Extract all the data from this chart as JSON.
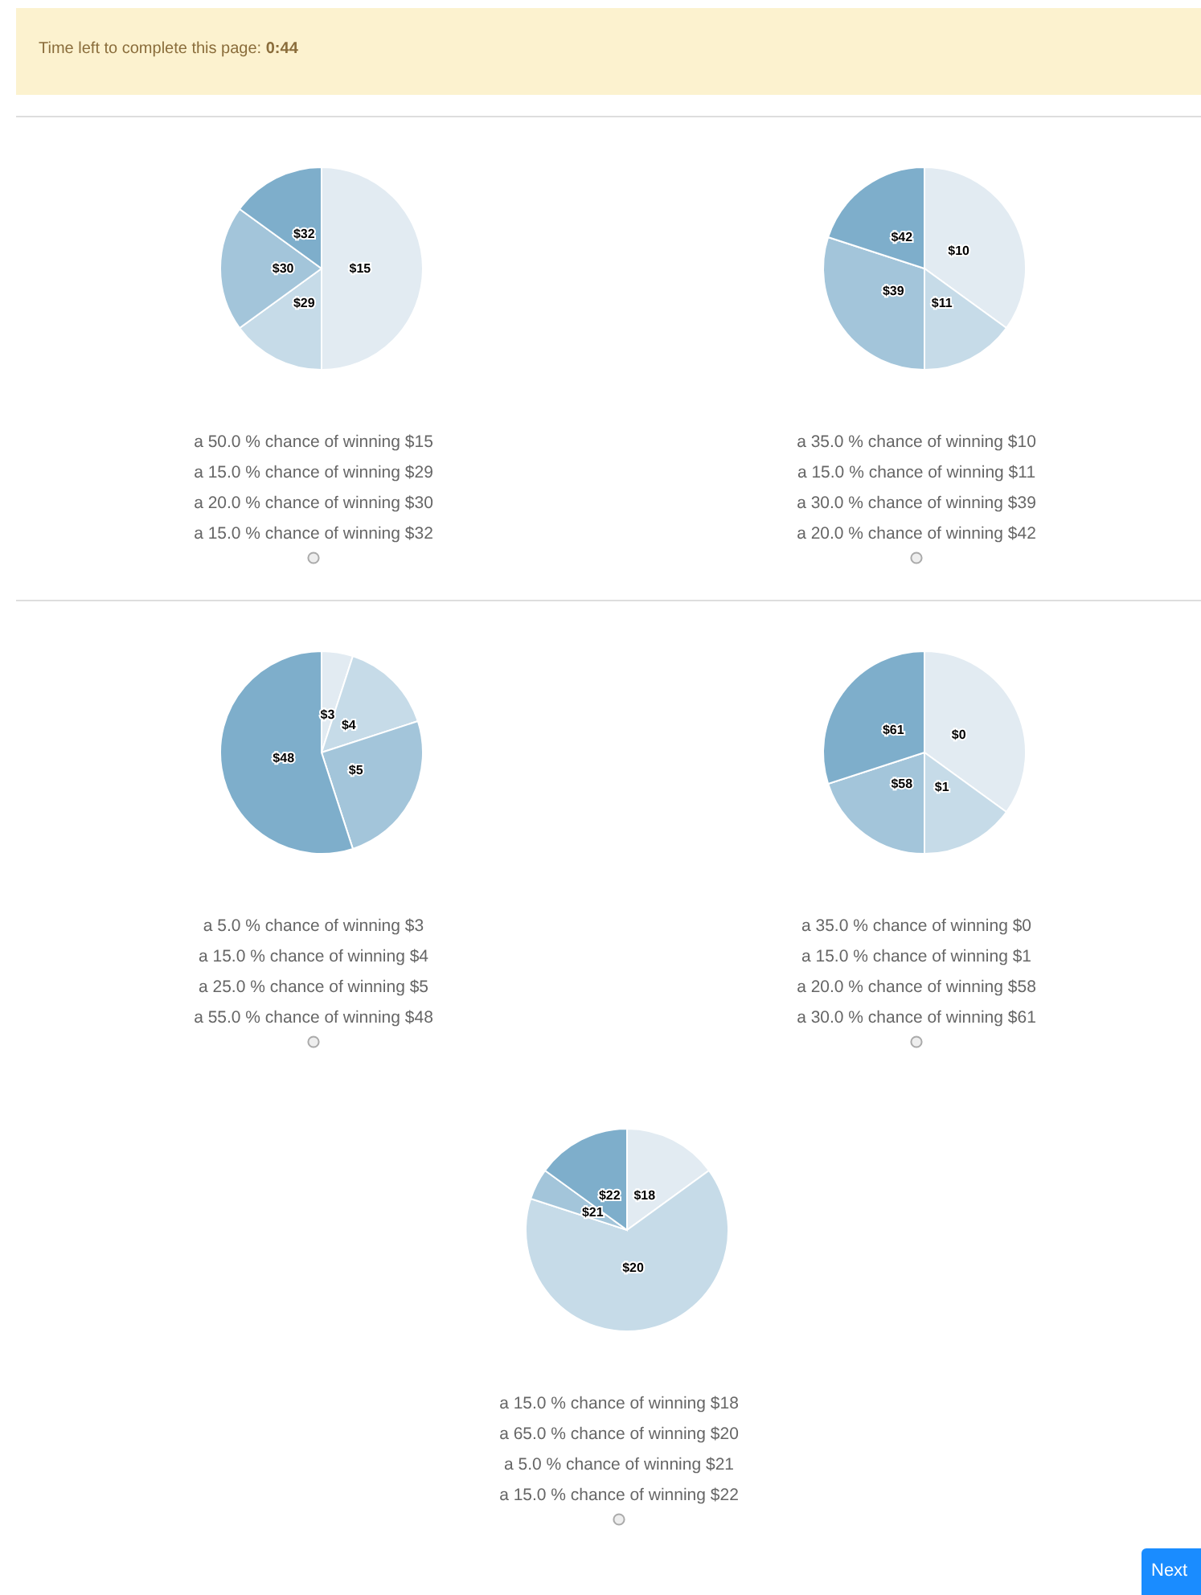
{
  "chart_data": [
    {
      "type": "pie",
      "title": "Time left to complete this page: 0:44",
      "categories": [
        "$15",
        "$29",
        "$30",
        "$32"
      ],
      "values": [
        50,
        15,
        20,
        15
      ],
      "colors": [
        "#e2ebf2",
        "#c6dbe8",
        "#a3c5da",
        "#7eaecb"
      ],
      "annotations": [
        "a 50.0 % chance of winning $15",
        "a 15.0 % chance of winning $29",
        "a 20.0 % chance of winning $30",
        "a 15.0 % chance of winning $32"
      ]
    },
    {
      "type": "pie",
      "categories": [
        "$10",
        "$11",
        "$39",
        "$42"
      ],
      "values": [
        35,
        15,
        30,
        20
      ],
      "colors": [
        "#e2ebf2",
        "#c6dbe8",
        "#a3c5da",
        "#7eaecb"
      ],
      "annotations": [
        "a 35.0 % chance of winning $10",
        "a 15.0 % chance of winning $11",
        "a 30.0 % chance of winning $39",
        "a 20.0 % chance of winning $42"
      ]
    },
    {
      "type": "pie",
      "categories": [
        "$3",
        "$4",
        "$5",
        "$48"
      ],
      "values": [
        5,
        15,
        25,
        55
      ],
      "colors": [
        "#e2ebf2",
        "#c6dbe8",
        "#a3c5da",
        "#7eaecb"
      ],
      "annotations": [
        "a 5.0 % chance of winning $3",
        "a 15.0 % chance of winning $4",
        "a 25.0 % chance of winning $5",
        "a 55.0 % chance of winning $48"
      ]
    },
    {
      "type": "pie",
      "categories": [
        "$0",
        "$1",
        "$58",
        "$61"
      ],
      "values": [
        35,
        15,
        20,
        30
      ],
      "colors": [
        "#e2ebf2",
        "#c6dbe8",
        "#a3c5da",
        "#7eaecb"
      ],
      "annotations": [
        "a 35.0 % chance of winning $0",
        "a 15.0 % chance of winning $1",
        "a 20.0 % chance of winning $58",
        "a 30.0 % chance of winning $61"
      ]
    },
    {
      "type": "pie",
      "categories": [
        "$18",
        "$20",
        "$21",
        "$22"
      ],
      "values": [
        15,
        65,
        5,
        15
      ],
      "colors": [
        "#e2ebf2",
        "#c6dbe8",
        "#a3c5da",
        "#7eaecb"
      ],
      "annotations": [
        "a 15.0 % chance of winning $18",
        "a 65.0 % chance of winning $20",
        "a 5.0 % chance of winning $21",
        "a 15.0 % chance of winning $22",
        "Next"
      ]
    }
  ]
}
